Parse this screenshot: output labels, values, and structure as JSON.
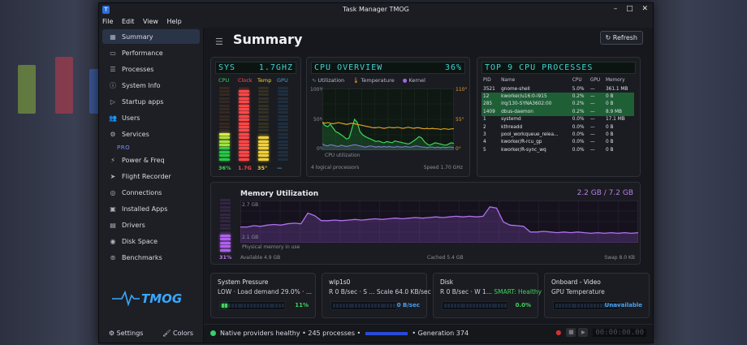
{
  "window": {
    "title": "Task Manager TMOG",
    "app_icon": "T"
  },
  "menu": [
    "File",
    "Edit",
    "View",
    "Help"
  ],
  "sidebar": {
    "items": [
      {
        "label": "Summary",
        "icon": "grid-icon",
        "active": true
      },
      {
        "label": "Performance",
        "icon": "monitor-icon"
      },
      {
        "label": "Processes",
        "icon": "list-icon"
      },
      {
        "label": "System Info",
        "icon": "info-icon"
      },
      {
        "label": "Startup apps",
        "icon": "play-icon"
      },
      {
        "label": "Users",
        "icon": "users-icon"
      },
      {
        "label": "Services",
        "icon": "gear-icon"
      }
    ],
    "pro_label": "PRO",
    "pro_items": [
      {
        "label": "Power & Freq",
        "icon": "bolt-icon"
      },
      {
        "label": "Flight Recorder",
        "icon": "send-icon"
      },
      {
        "label": "Connections",
        "icon": "globe-icon"
      },
      {
        "label": "Installed Apps",
        "icon": "box-icon"
      },
      {
        "label": "Drivers",
        "icon": "chip-icon"
      },
      {
        "label": "Disk Space",
        "icon": "disk-icon"
      },
      {
        "label": "Benchmarks",
        "icon": "target-icon"
      }
    ],
    "logo_text": "TMOG",
    "settings_label": "Settings",
    "colors_label": "Colors"
  },
  "header": {
    "title": "Summary",
    "refresh_label": "Refresh"
  },
  "sys_panel": {
    "title": "SYS",
    "freq": "1.7GHZ",
    "gauges": [
      {
        "label": "CPU",
        "value": "36%",
        "level": 0.36,
        "color": "#3fd45a"
      },
      {
        "label": "Clock",
        "value": "1.7G",
        "level": 0.95,
        "color": "#ff4848"
      },
      {
        "label": "Temp",
        "value": "35°",
        "level": 0.35,
        "color": "#f0d03a"
      },
      {
        "label": "GPU",
        "value": "—",
        "level": 0,
        "color": "#3a9ad8"
      }
    ]
  },
  "cpu_overview": {
    "title": "CPU OVERVIEW",
    "percent": "36%",
    "legend": [
      "Utilization",
      "Temperature",
      "Kernel"
    ],
    "y_left": [
      "100%",
      "50%",
      "0%"
    ],
    "y_right": [
      "110°",
      "55°",
      "0°"
    ],
    "chart_label": "CPU utilization",
    "footer_left": "4 logical processors",
    "footer_right": "Speed 1.70 GHz"
  },
  "top_processes": {
    "title": "TOP 9 CPU PROCESSES",
    "columns": [
      "PID",
      "Name",
      "CPU",
      "GPU",
      "Memory"
    ],
    "rows": [
      {
        "pid": "3521",
        "name": "gnome-shell",
        "cpu": "5.0%",
        "gpu": "—",
        "mem": "361.1 MB",
        "hl": false
      },
      {
        "pid": "12",
        "name": "kworker/u16:0-i915",
        "cpu": "0.2%",
        "gpu": "—",
        "mem": "0 B",
        "hl": true
      },
      {
        "pid": "285",
        "name": "irq/130-SYNA3602:00",
        "cpu": "0.2%",
        "gpu": "—",
        "mem": "0 B",
        "hl": true
      },
      {
        "pid": "1409",
        "name": "dbus-daemon",
        "cpu": "0.2%",
        "gpu": "—",
        "mem": "8.9 MB",
        "hl": true
      },
      {
        "pid": "1",
        "name": "systemd",
        "cpu": "0.0%",
        "gpu": "—",
        "mem": "17.1 MB",
        "hl": false
      },
      {
        "pid": "2",
        "name": "kthreadd",
        "cpu": "0.0%",
        "gpu": "—",
        "mem": "0 B",
        "hl": false
      },
      {
        "pid": "3",
        "name": "pool_workqueue_relea...",
        "cpu": "0.0%",
        "gpu": "—",
        "mem": "0 B",
        "hl": false
      },
      {
        "pid": "4",
        "name": "kworker/R-rcu_gp",
        "cpu": "0.0%",
        "gpu": "—",
        "mem": "0 B",
        "hl": false
      },
      {
        "pid": "5",
        "name": "kworker/R-sync_wq",
        "cpu": "0.0%",
        "gpu": "—",
        "mem": "0 B",
        "hl": false
      }
    ]
  },
  "memory": {
    "title": "Memory Utilization",
    "value": "2.2 GB / 7.2 GB",
    "percent": "31%",
    "level": 0.31,
    "y_top": "2.7 GB",
    "y_bottom": "2.1 GB",
    "chart_label": "Physical memory in use",
    "available": "Available 4.9 GB",
    "cached": "Cached 5.4 GB",
    "swap": "Swap 8.0 KB"
  },
  "cards": [
    {
      "title": "System Pressure",
      "sub": "LOW · Load demand 29.0% · ...",
      "value": "11%",
      "level": 0.11,
      "color": "#3fd45a",
      "value_color": "#3fd45a"
    },
    {
      "title": "wlp1s0",
      "sub": "R 0 B/sec · S ...     Scale 64.0 KB/sec",
      "value": "0 B/sec",
      "level": 0,
      "color": "#3a8ae8",
      "value_color": "#4aa0f0"
    },
    {
      "title": "Disk",
      "sub": "R 0 B/sec · W 1...",
      "sub_extra": "SMART: Healthy",
      "value": "0.0%",
      "level": 0,
      "color": "#3fd45a",
      "value_color": "#3fd45a"
    },
    {
      "title": "Onboard - Video",
      "sub": "GPU Temperature",
      "value": "Unavailable",
      "level": 0,
      "color": "#2a6fa8",
      "value_color": "#4aa0f0"
    }
  ],
  "status": {
    "text": "Native providers healthy • 245 processes •",
    "generation": "• Generation 374",
    "timer": "00:00:00.00"
  }
}
